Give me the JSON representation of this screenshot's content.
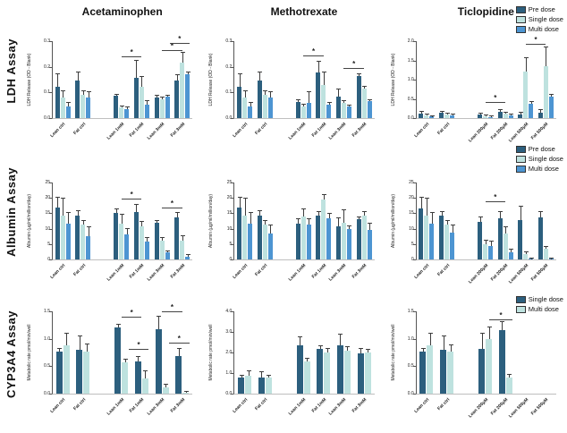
{
  "figure": {
    "row_labels": [
      "LDH Assay",
      "Albumin Assay",
      "CYP3A4 Assay"
    ],
    "col_titles": [
      "Acetaminophen",
      "Methotrexate",
      "Ticlopidine"
    ],
    "colors": {
      "pre_dose": "#2C5F7E",
      "single_dose": "#BEE2DF",
      "multi_dose": "#4D95D2"
    },
    "legend_rows_1_2": [
      "Pre dose",
      "Single dose",
      "Multi dose"
    ],
    "legend_row_3": [
      "Single dose",
      "Multi dose"
    ],
    "significance_symbol": "*"
  },
  "chart_data": [
    {
      "type": "bar",
      "row": "LDH Assay",
      "column": "Acetaminophen",
      "ylabel": "LDH Release (OD - Blank)",
      "ylim": [
        0,
        0.3
      ],
      "yticks": [
        0,
        0.1,
        0.2,
        0.3
      ],
      "ytick_labels": [
        "0.0",
        "0.1",
        "0.2",
        "0.3"
      ],
      "categories": [
        "Lean ctrl",
        "Fat ctrl",
        "Lean 1mM",
        "Fat 1mM",
        "Lean 3mM",
        "Fat 3mM"
      ],
      "series": [
        {
          "name": "Pre dose",
          "color": "#2C5F7E",
          "values": [
            0.122,
            0.146,
            0.086,
            0.158,
            0.081,
            0.146
          ],
          "errors": [
            0.05,
            0.032,
            0.006,
            0.065,
            0.006,
            0.022
          ]
        },
        {
          "name": "Single dose",
          "color": "#BEE2DF",
          "values": [
            0.081,
            0.091,
            0.041,
            0.121,
            0.074,
            0.218
          ],
          "errors": [
            0.025,
            0.013,
            0.005,
            0.038,
            0.006,
            0.038
          ]
        },
        {
          "name": "Multi dose",
          "color": "#4D95D2",
          "values": [
            0.047,
            0.082,
            0.036,
            0.054,
            0.083,
            0.17
          ],
          "errors": [
            0.012,
            0.018,
            0.005,
            0.012,
            0.006,
            0.008
          ]
        }
      ],
      "sig_bars": [
        {
          "x1": 2,
          "x2": 3,
          "y": 0.24,
          "label": "*"
        },
        {
          "x1": 4,
          "x2": 5,
          "y": 0.265,
          "label": "*"
        },
        {
          "x1": 4.4,
          "x2": 5.35,
          "y": 0.292,
          "label": "*"
        }
      ],
      "legend": false
    },
    {
      "type": "bar",
      "row": "LDH Assay",
      "column": "Methotrexate",
      "ylabel": "LDH Release (OD - Blank)",
      "ylim": [
        0,
        0.3
      ],
      "yticks": [
        0,
        0.1,
        0.2,
        0.3
      ],
      "ytick_labels": [
        "0.0",
        "0.1",
        "0.2",
        "0.3"
      ],
      "categories": [
        "Lean ctrl",
        "Fat ctrl",
        "Lean 1mM",
        "Fat 1mM",
        "Lean 3mM",
        "Fat 3mM"
      ],
      "series": [
        {
          "name": "Pre dose",
          "color": "#2C5F7E",
          "values": [
            0.122,
            0.146,
            0.063,
            0.178,
            0.084,
            0.165
          ],
          "errors": [
            0.05,
            0.032,
            0.007,
            0.042,
            0.028,
            0.006
          ]
        },
        {
          "name": "Single dose",
          "color": "#BEE2DF",
          "values": [
            0.081,
            0.091,
            0.046,
            0.13,
            0.06,
            0.115
          ],
          "errors": [
            0.025,
            0.013,
            0.006,
            0.048,
            0.008,
            0.007
          ]
        },
        {
          "name": "Multi dose",
          "color": "#4D95D2",
          "values": [
            0.047,
            0.082,
            0.06,
            0.053,
            0.044,
            0.065
          ],
          "errors": [
            0.012,
            0.018,
            0.04,
            0.007,
            0.005,
            0.005
          ]
        }
      ],
      "sig_bars": [
        {
          "x1": 2,
          "x2": 3,
          "y": 0.245,
          "label": "*"
        },
        {
          "x1": 4,
          "x2": 5,
          "y": 0.195,
          "label": "*"
        }
      ],
      "legend": false
    },
    {
      "type": "bar",
      "row": "LDH Assay",
      "column": "Ticlopidine",
      "ylabel": "LDH Release (OD - Blank)",
      "ylim": [
        0,
        2.0
      ],
      "yticks": [
        0,
        0.5,
        1.0,
        1.5,
        2.0
      ],
      "ytick_labels": [
        "0.0",
        "0.5",
        "1.0",
        "1.5",
        "2.0"
      ],
      "categories": [
        "Lean ctrl",
        "Fat ctrl",
        "Lean 200µM",
        "Fat 200µM",
        "Lean 500µM",
        "Fat 500µM"
      ],
      "series": [
        {
          "name": "Pre dose",
          "color": "#2C5F7E",
          "values": [
            0.11,
            0.13,
            0.09,
            0.16,
            0.09,
            0.15
          ],
          "errors": [
            0.05,
            0.03,
            0.02,
            0.04,
            0.06,
            0.06
          ]
        },
        {
          "name": "Single dose",
          "color": "#BEE2DF",
          "values": [
            0.07,
            0.09,
            0.05,
            0.12,
            1.2,
            1.35
          ],
          "errors": [
            0.02,
            0.02,
            0.01,
            0.03,
            0.35,
            0.48
          ]
        },
        {
          "name": "Multi dose",
          "color": "#4D95D2",
          "values": [
            0.04,
            0.08,
            0.03,
            0.07,
            0.38,
            0.55
          ],
          "errors": [
            0.01,
            0.02,
            0.01,
            0.02,
            0.04,
            0.05
          ]
        }
      ],
      "sig_bars": [
        {
          "x1": 2,
          "x2": 3,
          "y": 0.42,
          "label": "*"
        },
        {
          "x1": 4,
          "x2": 5,
          "y": 1.92,
          "label": "*"
        }
      ],
      "legend": true
    },
    {
      "type": "bar",
      "row": "Albumin Assay",
      "column": "Acetaminophen",
      "ylabel": "Albumin (µg/ml/million/day)",
      "ylim": [
        0,
        25
      ],
      "yticks": [
        0,
        5,
        10,
        15,
        20,
        25
      ],
      "ytick_labels": [
        "0",
        "5",
        "10",
        "15",
        "20",
        "25"
      ],
      "categories": [
        "Lean ctrl",
        "Fat ctrl",
        "Lean 1mM",
        "Fat 1mM",
        "Lean 3mM",
        "Fat 3mM"
      ],
      "series": [
        {
          "name": "Pre dose",
          "color": "#2C5F7E",
          "values": [
            16.8,
            14.2,
            15.0,
            15.3,
            12.0,
            13.8
          ],
          "errors": [
            3.3,
            1.4,
            1.2,
            2.4,
            0.5,
            1.2
          ]
        },
        {
          "name": "Single dose",
          "color": "#BEE2DF",
          "values": [
            14.3,
            11.2,
            11.5,
            10.8,
            6.2,
            6.2
          ],
          "errors": [
            5.5,
            1.2,
            3.0,
            1.5,
            0.8,
            1.5
          ]
        },
        {
          "name": "Multi dose",
          "color": "#4D95D2",
          "values": [
            11.5,
            7.5,
            8.0,
            5.8,
            2.2,
            1.0
          ],
          "errors": [
            3.5,
            3.0,
            2.0,
            1.2,
            0.5,
            0.4
          ]
        }
      ],
      "sig_bars": [
        {
          "x1": 2,
          "x2": 3,
          "y": 19.8,
          "label": "*"
        },
        {
          "x1": 4,
          "x2": 5,
          "y": 16.8,
          "label": "*"
        }
      ],
      "legend": false
    },
    {
      "type": "bar",
      "row": "Albumin Assay",
      "column": "Methotrexate",
      "ylabel": "Albumin (µg/ml/million/day)",
      "ylim": [
        0,
        25
      ],
      "yticks": [
        0,
        5,
        10,
        15,
        20,
        25
      ],
      "ytick_labels": [
        "0",
        "5",
        "10",
        "15",
        "20",
        "25"
      ],
      "categories": [
        "Lean ctrl",
        "Fat ctrl",
        "Lean 1mM",
        "Fat 1mM",
        "Lean 3mM",
        "Fat 3mM"
      ],
      "series": [
        {
          "name": "Pre dose",
          "color": "#2C5F7E",
          "values": [
            16.8,
            14.2,
            11.5,
            14.2,
            10.8,
            13.0
          ],
          "errors": [
            3.3,
            1.4,
            1.5,
            1.3,
            2.7,
            0.8
          ]
        },
        {
          "name": "Single dose",
          "color": "#BEE2DF",
          "values": [
            14.3,
            11.2,
            14.0,
            19.5,
            11.8,
            14.3
          ],
          "errors": [
            5.5,
            1.2,
            2.2,
            1.5,
            4.3,
            1.2
          ]
        },
        {
          "name": "Multi dose",
          "color": "#4D95D2",
          "values": [
            11.5,
            8.5,
            11.2,
            13.5,
            10.0,
            9.5
          ],
          "errors": [
            3.5,
            2.5,
            2.0,
            1.3,
            0.8,
            2.2
          ]
        }
      ],
      "sig_bars": [],
      "legend": false
    },
    {
      "type": "bar",
      "row": "Albumin Assay",
      "column": "Ticlopidine",
      "ylabel": "Albumin (µg/ml/million/day)",
      "ylim": [
        0,
        25
      ],
      "yticks": [
        0,
        5,
        10,
        15,
        20,
        25
      ],
      "ytick_labels": [
        "0",
        "5",
        "10",
        "15",
        "20",
        "25"
      ],
      "categories": [
        "Lean ctrl",
        "Fat ctrl",
        "Lean 200µM",
        "Fat 200µM",
        "Lean 500µM",
        "Fat 500µM"
      ],
      "series": [
        {
          "name": "Pre dose",
          "color": "#2C5F7E",
          "values": [
            16.7,
            14.2,
            12.2,
            13.5,
            12.7,
            13.7
          ],
          "errors": [
            3.3,
            1.3,
            1.6,
            1.8,
            4.6,
            1.6
          ]
        },
        {
          "name": "Single dose",
          "color": "#BEE2DF",
          "values": [
            14.2,
            11.2,
            5.0,
            8.3,
            1.7,
            3.5
          ],
          "errors": [
            5.6,
            1.2,
            1.2,
            2.2,
            0.7,
            0.6
          ]
        },
        {
          "name": "Multi dose",
          "color": "#4D95D2",
          "values": [
            11.5,
            8.6,
            4.3,
            2.2,
            0.15,
            0.15
          ],
          "errors": [
            3.6,
            2.5,
            1.5,
            0.9,
            0.1,
            0.1
          ]
        }
      ],
      "sig_bars": [
        {
          "x1": 2,
          "x2": 3,
          "y": 18.8,
          "label": "*"
        }
      ],
      "legend": true
    },
    {
      "type": "bar",
      "row": "CYP3A4 Assay",
      "column": "Acetaminophen",
      "ylabel": "Metabolic rate pmol/min/well",
      "ylim": [
        0,
        1.5
      ],
      "yticks": [
        0,
        0.5,
        1.0,
        1.5
      ],
      "ytick_labels": [
        "0.0",
        "0.5",
        "1.0",
        "1.5"
      ],
      "categories": [
        "Lean ctrl",
        "Fat ctrl",
        "Lean 1mM",
        "Fat 1mM",
        "Lean 3mM",
        "Fat 3mM"
      ],
      "series": [
        {
          "name": "Single dose",
          "color": "#2C5F7E",
          "values": [
            0.77,
            0.8,
            1.2,
            0.59,
            1.18,
            0.68
          ],
          "errors": [
            0.05,
            0.24,
            0.05,
            0.08,
            0.23,
            0.13
          ]
        },
        {
          "name": "Multi dose",
          "color": "#BEE2DF",
          "values": [
            0.88,
            0.76,
            0.57,
            0.27,
            0.12,
            0.02
          ],
          "errors": [
            0.22,
            0.13,
            0.05,
            0.13,
            0.04,
            0.02
          ]
        }
      ],
      "sig_bars": [
        {
          "x1": 2,
          "x2": 3,
          "y": 1.4,
          "label": "*"
        },
        {
          "x1": 2.35,
          "x2": 3.35,
          "y": 0.82,
          "label": "*"
        },
        {
          "x1": 4,
          "x2": 5,
          "y": 1.5,
          "label": "*"
        },
        {
          "x1": 4.35,
          "x2": 5.35,
          "y": 0.93,
          "label": "*"
        }
      ],
      "legend": false
    },
    {
      "type": "bar",
      "row": "CYP3A4 Assay",
      "column": "Methotrexate",
      "ylabel": "Metabolic rate pmol/min/well",
      "ylim": [
        0,
        4.0
      ],
      "yticks": [
        0,
        1.0,
        2.0,
        3.0,
        4.0
      ],
      "ytick_labels": [
        "0.0",
        "1.0",
        "2.0",
        "3.0",
        "4.0"
      ],
      "categories": [
        "Lean ctrl",
        "Fat ctrl",
        "Lean 1mM",
        "Fat 1mM",
        "Lean 3mM",
        "Fat 3mM"
      ],
      "series": [
        {
          "name": "Single dose",
          "color": "#2C5F7E",
          "values": [
            0.78,
            0.8,
            2.33,
            2.17,
            2.37,
            1.97
          ],
          "errors": [
            0.08,
            0.24,
            0.42,
            0.15,
            0.5,
            0.2
          ]
        },
        {
          "name": "Multi dose",
          "color": "#BEE2DF",
          "values": [
            0.88,
            0.77,
            1.58,
            2.0,
            2.1,
            2.0
          ],
          "errors": [
            0.22,
            0.12,
            0.13,
            0.18,
            0.15,
            0.15
          ]
        }
      ],
      "sig_bars": [],
      "legend": false
    },
    {
      "type": "bar",
      "row": "CYP3A4 Assay",
      "column": "Ticlopidine",
      "ylabel": "Metabolic rate pmol/min/well",
      "ylim": [
        0,
        1.5
      ],
      "yticks": [
        0,
        0.5,
        1.0,
        1.5
      ],
      "ytick_labels": [
        "0.0",
        "0.5",
        "1.0",
        "1.5"
      ],
      "categories": [
        "Lean ctrl",
        "Fat ctrl",
        "Lean 200µM",
        "Fat 200µM",
        "Lean 500µM",
        "Fat 500µM"
      ],
      "series": [
        {
          "name": "Single dose",
          "color": "#2C5F7E",
          "values": [
            0.77,
            0.8,
            0.81,
            1.15,
            0,
            0
          ],
          "errors": [
            0.05,
            0.24,
            0.28,
            0.15,
            0,
            0
          ]
        },
        {
          "name": "Multi dose",
          "color": "#BEE2DF",
          "values": [
            0.88,
            0.76,
            0.99,
            0.3,
            0,
            0
          ],
          "errors": [
            0.22,
            0.12,
            0.21,
            0.04,
            0,
            0
          ]
        }
      ],
      "sig_bars": [
        {
          "x1": 2.2,
          "x2": 3.35,
          "y": 1.36,
          "label": "*"
        }
      ],
      "legend": true
    }
  ]
}
